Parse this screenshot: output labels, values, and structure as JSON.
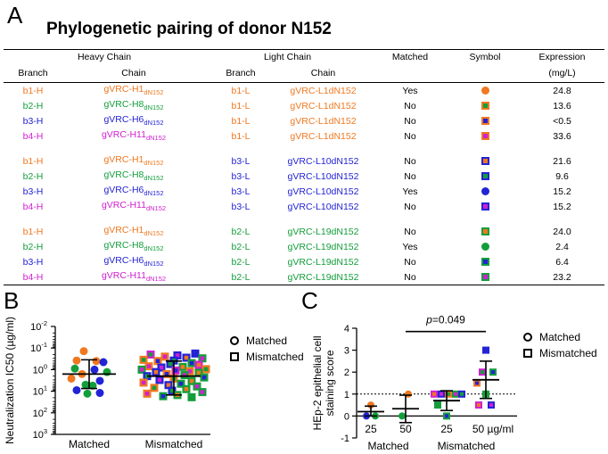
{
  "panels": {
    "a": "A",
    "b": "B",
    "c": "C"
  },
  "table": {
    "title": "Phylogenetic pairing of donor N152",
    "group_headers": {
      "heavy": "Heavy Chain",
      "light": "Light Chain",
      "matched": "Matched",
      "symbol": "Symbol",
      "expression": "Expression"
    },
    "sub_headers": {
      "branch_h": "Branch",
      "chain_h": "Chain",
      "branch_l": "Branch",
      "chain_l": "Chain",
      "expression_unit": "(mg/L)"
    },
    "colors": {
      "orange": "#f07820",
      "green": "#139e3b",
      "blue": "#2323d6",
      "magenta": "#d020d0"
    },
    "rows": [
      {
        "hb": "b1-H",
        "hc": "gVRC-H1",
        "hs": "dN152",
        "hcol": "orange",
        "lb": "b1-L",
        "lc": "gVRC-L1dN152",
        "lcol": "orange",
        "matched": "Yes",
        "sym": "circle",
        "fill": "orange",
        "inner": "orange",
        "expr": "24.8"
      },
      {
        "hb": "b2-H",
        "hc": "gVRC-H8",
        "hs": "dN152",
        "hcol": "green",
        "lb": "b1-L",
        "lc": "gVRC-L1dN152",
        "lcol": "orange",
        "matched": "No",
        "sym": "square",
        "fill": "orange",
        "inner": "green",
        "expr": "13.6"
      },
      {
        "hb": "b3-H",
        "hc": "gVRC-H6",
        "hs": "dN152",
        "hcol": "blue",
        "lb": "b1-L",
        "lc": "gVRC-L1dN152",
        "lcol": "orange",
        "matched": "No",
        "sym": "square",
        "fill": "orange",
        "inner": "blue",
        "expr": "<0.5"
      },
      {
        "hb": "b4-H",
        "hc": "gVRC-H11",
        "hs": "dN152",
        "hcol": "magenta",
        "lb": "b1-L",
        "lc": "gVRC-L1dN152",
        "lcol": "orange",
        "matched": "No",
        "sym": "square",
        "fill": "orange",
        "inner": "magenta",
        "expr": "33.6"
      },
      {
        "hb": "b1-H",
        "hc": "gVRC-H1",
        "hs": "dN152",
        "hcol": "orange",
        "lb": "b3-L",
        "lc": "gVRC-L10dN152",
        "lcol": "blue",
        "matched": "No",
        "sym": "square",
        "fill": "blue",
        "inner": "orange",
        "expr": "21.6"
      },
      {
        "hb": "b2-H",
        "hc": "gVRC-H8",
        "hs": "dN152",
        "hcol": "green",
        "lb": "b3-L",
        "lc": "gVRC-L10dN152",
        "lcol": "blue",
        "matched": "No",
        "sym": "square",
        "fill": "blue",
        "inner": "green",
        "expr": "9.6"
      },
      {
        "hb": "b3-H",
        "hc": "gVRC-H6",
        "hs": "dN152",
        "hcol": "blue",
        "lb": "b3-L",
        "lc": "gVRC-L10dN152",
        "lcol": "blue",
        "matched": "Yes",
        "sym": "circle",
        "fill": "blue",
        "inner": "blue",
        "expr": "15.2"
      },
      {
        "hb": "b4-H",
        "hc": "gVRC-H11",
        "hs": "dN152",
        "hcol": "magenta",
        "lb": "b3-L",
        "lc": "gVRC-L10dN152",
        "lcol": "blue",
        "matched": "No",
        "sym": "square",
        "fill": "blue",
        "inner": "magenta",
        "expr": "15.2"
      },
      {
        "hb": "b1-H",
        "hc": "gVRC-H1",
        "hs": "dN152",
        "hcol": "orange",
        "lb": "b2-L",
        "lc": "gVRC-L19dN152",
        "lcol": "green",
        "matched": "No",
        "sym": "square",
        "fill": "green",
        "inner": "orange",
        "expr": "24.0"
      },
      {
        "hb": "b2-H",
        "hc": "gVRC-H8",
        "hs": "dN152",
        "hcol": "green",
        "lb": "b2-L",
        "lc": "gVRC-L19dN152",
        "lcol": "green",
        "matched": "Yes",
        "sym": "circle",
        "fill": "green",
        "inner": "green",
        "expr": "2.4"
      },
      {
        "hb": "b3-H",
        "hc": "gVRC-H6",
        "hs": "dN152",
        "hcol": "blue",
        "lb": "b2-L",
        "lc": "gVRC-L19dN152",
        "lcol": "green",
        "matched": "No",
        "sym": "square",
        "fill": "green",
        "inner": "blue",
        "expr": "6.4"
      },
      {
        "hb": "b4-H",
        "hc": "gVRC-H11",
        "hs": "dN152",
        "hcol": "magenta",
        "lb": "b2-L",
        "lc": "gVRC-L19dN152",
        "lcol": "green",
        "matched": "No",
        "sym": "square",
        "fill": "green",
        "inner": "magenta",
        "expr": "23.2"
      }
    ]
  },
  "chart_data": [
    {
      "type": "scatter",
      "panel": "B",
      "ylabel": "Neutralization IC50 (µg/ml)",
      "y_scale": "log",
      "y_inverted": true,
      "ylim": [
        0.01,
        1000
      ],
      "y_ticks": [
        {
          "e": -2
        },
        {
          "e": -1
        },
        {
          "e": 0
        },
        {
          "e": 1
        },
        {
          "e": 2
        },
        {
          "e": 3
        }
      ],
      "categories": [
        "Matched",
        "Mismatched"
      ],
      "legend": {
        "matched": "Matched",
        "mismatched": "Mismatched",
        "position": "right"
      },
      "summary": [
        {
          "category": "Matched",
          "mean": 1.6,
          "sd_low": 0.35,
          "sd_high": 7.5
        },
        {
          "category": "Mismatched",
          "mean": 2.0,
          "sd_low": 0.4,
          "sd_high": 15
        }
      ],
      "points": [
        {
          "g": 0,
          "y": 0.14,
          "c": "orange",
          "i": "orange",
          "s": "circle",
          "j": -6
        },
        {
          "g": 0,
          "y": 0.38,
          "c": "orange",
          "i": "orange",
          "s": "circle",
          "j": -14
        },
        {
          "g": 0,
          "y": 0.4,
          "c": "orange",
          "i": "orange",
          "s": "circle",
          "j": 8
        },
        {
          "g": 0,
          "y": 0.45,
          "c": "blue",
          "i": "blue",
          "s": "circle",
          "j": 16
        },
        {
          "g": 0,
          "y": 0.9,
          "c": "green",
          "i": "green",
          "s": "circle",
          "j": -16
        },
        {
          "g": 0,
          "y": 1.0,
          "c": "blue",
          "i": "blue",
          "s": "circle",
          "j": 6
        },
        {
          "g": 0,
          "y": 1.3,
          "c": "green",
          "i": "green",
          "s": "circle",
          "j": 20
        },
        {
          "g": 0,
          "y": 1.6,
          "c": "orange",
          "i": "orange",
          "s": "circle",
          "j": -8
        },
        {
          "g": 0,
          "y": 2.6,
          "c": "orange",
          "i": "orange",
          "s": "circle",
          "j": -20
        },
        {
          "g": 0,
          "y": 3.3,
          "c": "blue",
          "i": "blue",
          "s": "circle",
          "j": 12
        },
        {
          "g": 0,
          "y": 5.0,
          "c": "green",
          "i": "green",
          "s": "circle",
          "j": -4
        },
        {
          "g": 0,
          "y": 5.5,
          "c": "green",
          "i": "green",
          "s": "circle",
          "j": 4
        },
        {
          "g": 0,
          "y": 9.0,
          "c": "blue",
          "i": "blue",
          "s": "circle",
          "j": -14
        },
        {
          "g": 0,
          "y": 12,
          "c": "blue",
          "i": "blue",
          "s": "circle",
          "j": 12
        },
        {
          "g": 0,
          "y": 13,
          "c": "green",
          "i": "green",
          "s": "circle",
          "j": -2
        },
        {
          "g": 1,
          "y": 0.18,
          "c": "blue",
          "i": "blue",
          "s": "square",
          "j": 24
        },
        {
          "g": 1,
          "y": 0.2,
          "c": "magenta",
          "i": "green",
          "s": "square",
          "j": -26
        },
        {
          "g": 1,
          "y": 0.22,
          "c": "blue",
          "i": "magenta",
          "s": "square",
          "j": 4
        },
        {
          "g": 1,
          "y": 0.25,
          "c": "orange",
          "i": "magenta",
          "s": "square",
          "j": -10
        },
        {
          "g": 1,
          "y": 0.28,
          "c": "blue",
          "i": "orange",
          "s": "square",
          "j": 14
        },
        {
          "g": 1,
          "y": 0.3,
          "c": "green",
          "i": "magenta",
          "s": "square",
          "j": 32
        },
        {
          "g": 1,
          "y": 0.35,
          "c": "orange",
          "i": "green",
          "s": "square",
          "j": -34
        },
        {
          "g": 1,
          "y": 0.38,
          "c": "blue",
          "i": "green",
          "s": "square",
          "j": 0
        },
        {
          "g": 1,
          "y": 0.4,
          "c": "orange",
          "i": "blue",
          "s": "square",
          "j": -18
        },
        {
          "g": 1,
          "y": 0.5,
          "c": "green",
          "i": "blue",
          "s": "square",
          "j": 20
        },
        {
          "g": 1,
          "y": 0.55,
          "c": "blue",
          "i": "green",
          "s": "square",
          "j": -4
        },
        {
          "g": 1,
          "y": 0.6,
          "c": "magenta",
          "i": "orange",
          "s": "square",
          "j": 28
        },
        {
          "g": 1,
          "y": 0.7,
          "c": "orange",
          "i": "magenta",
          "s": "square",
          "j": -28
        },
        {
          "g": 1,
          "y": 0.75,
          "c": "green",
          "i": "orange",
          "s": "square",
          "j": 10
        },
        {
          "g": 1,
          "y": 0.8,
          "c": "blue",
          "i": "magenta",
          "s": "square",
          "j": -14
        },
        {
          "g": 1,
          "y": 0.95,
          "c": "orange",
          "i": "green",
          "s": "square",
          "j": 36
        },
        {
          "g": 1,
          "y": 1.0,
          "c": "green",
          "i": "magenta",
          "s": "square",
          "j": -36
        },
        {
          "g": 1,
          "y": 1.1,
          "c": "magenta",
          "i": "blue",
          "s": "square",
          "j": 2
        },
        {
          "g": 1,
          "y": 1.2,
          "c": "orange",
          "i": "magenta",
          "s": "square",
          "j": 18
        },
        {
          "g": 1,
          "y": 1.3,
          "c": "blue",
          "i": "orange",
          "s": "square",
          "j": -20
        },
        {
          "g": 1,
          "y": 1.4,
          "c": "green",
          "i": "orange",
          "s": "square",
          "j": 28
        },
        {
          "g": 1,
          "y": 1.6,
          "c": "orange",
          "i": "blue",
          "s": "square",
          "j": -8
        },
        {
          "g": 1,
          "y": 1.8,
          "c": "green",
          "i": "magenta",
          "s": "square",
          "j": 12
        },
        {
          "g": 1,
          "y": 2.0,
          "c": "blue",
          "i": "green",
          "s": "square",
          "j": -30
        },
        {
          "g": 1,
          "y": 2.3,
          "c": "green",
          "i": "blue",
          "s": "square",
          "j": 34
        },
        {
          "g": 1,
          "y": 2.6,
          "c": "orange",
          "i": "green",
          "s": "square",
          "j": 0
        },
        {
          "g": 1,
          "y": 3.0,
          "c": "blue",
          "i": "magenta",
          "s": "square",
          "j": -16
        },
        {
          "g": 1,
          "y": 3.4,
          "c": "green",
          "i": "orange",
          "s": "square",
          "j": 20
        },
        {
          "g": 1,
          "y": 4.0,
          "c": "orange",
          "i": "magenta",
          "s": "square",
          "j": -34
        },
        {
          "g": 1,
          "y": 4.5,
          "c": "green",
          "i": "blue",
          "s": "square",
          "j": 8
        },
        {
          "g": 1,
          "y": 5.2,
          "c": "blue",
          "i": "orange",
          "s": "square",
          "j": -6
        },
        {
          "g": 1,
          "y": 6.0,
          "c": "green",
          "i": "magenta",
          "s": "square",
          "j": 26
        },
        {
          "g": 1,
          "y": 7.0,
          "c": "orange",
          "i": "green",
          "s": "square",
          "j": -22
        },
        {
          "g": 1,
          "y": 8.0,
          "c": "green",
          "i": "orange",
          "s": "square",
          "j": 14
        },
        {
          "g": 1,
          "y": 9.5,
          "c": "blue",
          "i": "green",
          "s": "square",
          "j": -2
        },
        {
          "g": 1,
          "y": 11,
          "c": "green",
          "i": "magenta",
          "s": "square",
          "j": 32
        },
        {
          "g": 1,
          "y": 13,
          "c": "orange",
          "i": "magenta",
          "s": "square",
          "j": -30
        },
        {
          "g": 1,
          "y": 15,
          "c": "green",
          "i": "orange",
          "s": "square",
          "j": 4
        },
        {
          "g": 1,
          "y": 17,
          "c": "green",
          "i": "blue",
          "s": "square",
          "j": -12
        },
        {
          "g": 1,
          "y": 19,
          "c": "green",
          "i": "green",
          "s": "square",
          "j": 20
        }
      ]
    },
    {
      "type": "scatter",
      "panel": "C",
      "ylabel": "HEp-2 epithelial cell staining score",
      "ylim": [
        -1,
        4
      ],
      "y_ticks": [
        "-1",
        "0",
        "1",
        "2",
        "3",
        "4"
      ],
      "reference_line": 1,
      "group_labels": [
        "Matched",
        "Mismatched"
      ],
      "concentration_labels": [
        "25",
        "50",
        "25",
        "50 µg/ml"
      ],
      "significance": "p=0.049",
      "legend": {
        "matched": "Matched",
        "mismatched": "Mismatched",
        "position": "top-right"
      },
      "summary": [
        {
          "x": 0,
          "mean": 0.2,
          "low": 0.0,
          "high": 0.45
        },
        {
          "x": 1,
          "mean": 0.33,
          "low": -0.3,
          "high": 0.95
        },
        {
          "x": 2,
          "mean": 0.7,
          "low": 0.25,
          "high": 1.15
        },
        {
          "x": 3,
          "mean": 1.65,
          "low": 0.8,
          "high": 2.5
        }
      ],
      "points": [
        {
          "x": 0,
          "y": 0,
          "c": "blue",
          "i": "blue",
          "s": "circle",
          "j": -5
        },
        {
          "x": 0,
          "y": 0,
          "c": "green",
          "i": "green",
          "s": "circle",
          "j": 5
        },
        {
          "x": 0,
          "y": 0.5,
          "c": "orange",
          "i": "orange",
          "s": "circle",
          "j": 0
        },
        {
          "x": 1,
          "y": 0,
          "c": "green",
          "i": "green",
          "s": "circle",
          "j": -4
        },
        {
          "x": 1,
          "y": 1,
          "c": "orange",
          "i": "orange",
          "s": "circle",
          "j": 3
        },
        {
          "x": 2,
          "y": 0,
          "c": "green",
          "i": "blue",
          "s": "square",
          "j": 0
        },
        {
          "x": 2,
          "y": 0.5,
          "c": "green",
          "i": "green",
          "s": "square",
          "j": -10
        },
        {
          "x": 2,
          "y": 1,
          "c": "magenta",
          "i": "orange",
          "s": "square",
          "j": -14
        },
        {
          "x": 2,
          "y": 1,
          "c": "blue",
          "i": "magenta",
          "s": "square",
          "j": -6
        },
        {
          "x": 2,
          "y": 1,
          "c": "orange",
          "i": "green",
          "s": "square",
          "j": 2
        },
        {
          "x": 2,
          "y": 1,
          "c": "green",
          "i": "magenta",
          "s": "square",
          "j": 10
        },
        {
          "x": 2,
          "y": 1,
          "c": "blue",
          "i": "green",
          "s": "square",
          "j": 17
        },
        {
          "x": 3,
          "y": 0.5,
          "c": "magenta",
          "i": "orange",
          "s": "square",
          "j": -8
        },
        {
          "x": 3,
          "y": 0.5,
          "c": "blue",
          "i": "magenta",
          "s": "square",
          "j": 6
        },
        {
          "x": 3,
          "y": 1,
          "c": "green",
          "i": "green",
          "s": "square",
          "j": 0
        },
        {
          "x": 3,
          "y": 1.5,
          "c": "orange",
          "i": "blue",
          "s": "square",
          "j": -10
        },
        {
          "x": 3,
          "y": 2,
          "c": "magenta",
          "i": "green",
          "s": "square",
          "j": -4
        },
        {
          "x": 3,
          "y": 2,
          "c": "green",
          "i": "blue",
          "s": "square",
          "j": 8
        },
        {
          "x": 3,
          "y": 3,
          "c": "blue",
          "i": "blue",
          "s": "square",
          "j": 0
        }
      ]
    }
  ]
}
